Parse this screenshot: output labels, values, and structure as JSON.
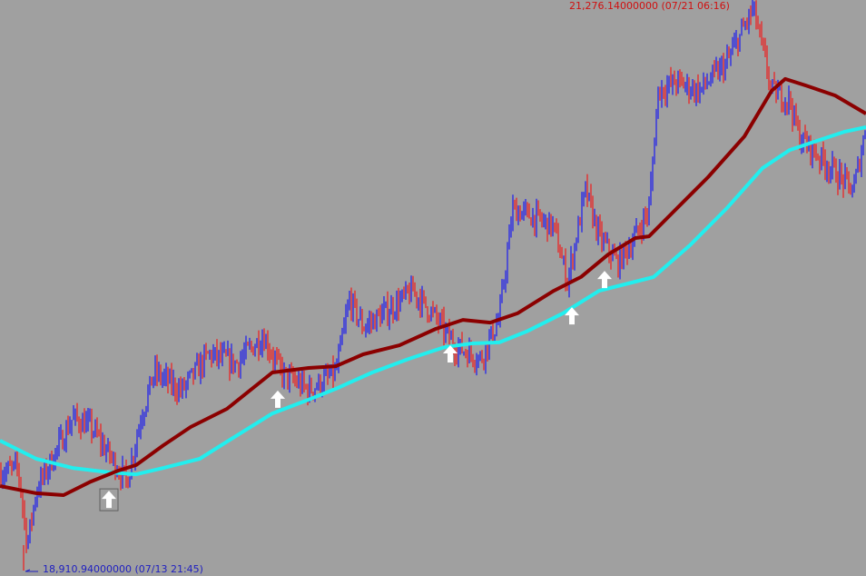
{
  "chart_data": {
    "type": "candlestick",
    "price_range": [
      18910.94,
      21276.14
    ],
    "high_label": "21,276.14000000 (07/21 06:16)",
    "low_label": "18,910.94000000 (07/13 21:45)",
    "colors": {
      "background": "#a0a0a0",
      "bull": "#0000ff",
      "bear": "#ff0000",
      "ma_slow": "#8b0000",
      "ma_fast": "#22eeee",
      "arrow": "#ffffff",
      "high_label": "#d01010",
      "low_label": "#2020c0"
    },
    "price_path": [
      [
        0,
        19316
      ],
      [
        20,
        19334
      ],
      [
        30,
        19016
      ],
      [
        40,
        19241
      ],
      [
        60,
        19391
      ],
      [
        80,
        19541
      ],
      [
        100,
        19503
      ],
      [
        120,
        19391
      ],
      [
        140,
        19278
      ],
      [
        155,
        19541
      ],
      [
        170,
        19728
      ],
      [
        200,
        19653
      ],
      [
        230,
        19803
      ],
      [
        260,
        19765
      ],
      [
        290,
        19878
      ],
      [
        310,
        19728
      ],
      [
        340,
        19653
      ],
      [
        370,
        19728
      ],
      [
        385,
        20028
      ],
      [
        400,
        19915
      ],
      [
        430,
        19990
      ],
      [
        455,
        20065
      ],
      [
        480,
        19953
      ],
      [
        500,
        19840
      ],
      [
        530,
        19784
      ],
      [
        550,
        19953
      ],
      [
        565,
        20403
      ],
      [
        590,
        20365
      ],
      [
        610,
        20328
      ],
      [
        625,
        20103
      ],
      [
        645,
        20478
      ],
      [
        660,
        20290
      ],
      [
        680,
        20178
      ],
      [
        700,
        20290
      ],
      [
        715,
        20403
      ],
      [
        725,
        20890
      ],
      [
        745,
        20927
      ],
      [
        770,
        20890
      ],
      [
        800,
        21002
      ],
      [
        830,
        21230
      ],
      [
        850,
        20890
      ],
      [
        870,
        20852
      ],
      [
        880,
        20702
      ],
      [
        900,
        20628
      ],
      [
        920,
        20553
      ],
      [
        940,
        20478
      ],
      [
        954,
        20740
      ]
    ],
    "ma_slow": [
      [
        0,
        19260
      ],
      [
        40,
        19230
      ],
      [
        70,
        19222
      ],
      [
        100,
        19278
      ],
      [
        130,
        19323
      ],
      [
        150,
        19346
      ],
      [
        180,
        19428
      ],
      [
        210,
        19503
      ],
      [
        250,
        19578
      ],
      [
        300,
        19728
      ],
      [
        340,
        19747
      ],
      [
        370,
        19754
      ],
      [
        400,
        19803
      ],
      [
        440,
        19840
      ],
      [
        480,
        19908
      ],
      [
        510,
        19945
      ],
      [
        540,
        19934
      ],
      [
        570,
        19972
      ],
      [
        610,
        20065
      ],
      [
        640,
        20122
      ],
      [
        670,
        20215
      ],
      [
        700,
        20283
      ],
      [
        715,
        20290
      ],
      [
        740,
        20384
      ],
      [
        780,
        20534
      ],
      [
        820,
        20702
      ],
      [
        850,
        20890
      ],
      [
        865,
        20939
      ],
      [
        890,
        20909
      ],
      [
        920,
        20871
      ],
      [
        954,
        20796
      ]
    ],
    "ma_fast": [
      [
        0,
        19447
      ],
      [
        40,
        19372
      ],
      [
        80,
        19334
      ],
      [
        120,
        19316
      ],
      [
        150,
        19308
      ],
      [
        180,
        19334
      ],
      [
        220,
        19372
      ],
      [
        260,
        19466
      ],
      [
        300,
        19559
      ],
      [
        340,
        19616
      ],
      [
        370,
        19661
      ],
      [
        410,
        19728
      ],
      [
        450,
        19784
      ],
      [
        490,
        19833
      ],
      [
        520,
        19848
      ],
      [
        550,
        19852
      ],
      [
        580,
        19897
      ],
      [
        620,
        19972
      ],
      [
        660,
        20065
      ],
      [
        700,
        20103
      ],
      [
        720,
        20122
      ],
      [
        760,
        20253
      ],
      [
        800,
        20403
      ],
      [
        840,
        20571
      ],
      [
        870,
        20646
      ],
      [
        900,
        20684
      ],
      [
        930,
        20721
      ],
      [
        954,
        20740
      ]
    ],
    "buy_arrows": [
      [
        120,
        19203
      ],
      [
        306,
        19616
      ],
      [
        496,
        19803
      ],
      [
        630,
        19960
      ],
      [
        666,
        20110
      ]
    ]
  }
}
